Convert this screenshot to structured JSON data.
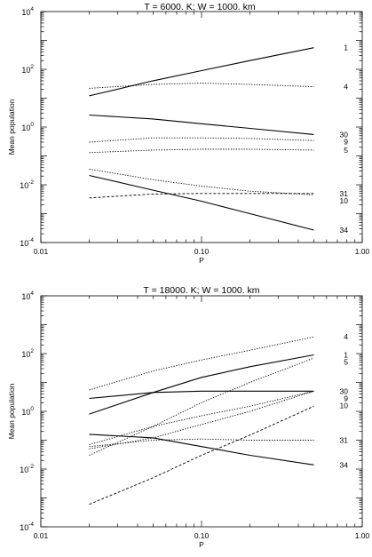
{
  "chart_data": [
    {
      "type": "line",
      "title": "T =  6000. K; W = 1000. km",
      "xlabel": "P",
      "ylabel": "Mean population",
      "xscale": "log",
      "yscale": "log",
      "xlim": [
        0.01,
        1.0
      ],
      "ylim": [
        0.0001,
        10000
      ],
      "x_tick_labels": [
        "0.01",
        "0.10",
        "1.00"
      ],
      "y_tick_labels": [
        {
          "base": "10",
          "exp": "-4"
        },
        {
          "base": "10",
          "exp": "-2"
        },
        {
          "base": "10",
          "exp": "0"
        },
        {
          "base": "10",
          "exp": "2"
        },
        {
          "base": "10",
          "exp": "4"
        }
      ],
      "x": [
        0.02,
        0.05,
        0.1,
        0.2,
        0.5
      ],
      "series": [
        {
          "name": "1",
          "style": "solid",
          "values": [
            12,
            40,
            90,
            200,
            560
          ]
        },
        {
          "name": "4",
          "style": "dotted",
          "values": [
            22,
            30,
            33,
            30,
            25
          ]
        },
        {
          "name": "30",
          "style": "solid",
          "values": [
            2.6,
            1.9,
            1.3,
            0.9,
            0.55
          ]
        },
        {
          "name": "9",
          "style": "dotted",
          "values": [
            0.3,
            0.42,
            0.42,
            0.4,
            0.34
          ]
        },
        {
          "name": "5",
          "style": "dotted",
          "values": [
            0.13,
            0.16,
            0.17,
            0.17,
            0.16
          ]
        },
        {
          "name": "10",
          "style": "dotted",
          "values": [
            0.035,
            0.015,
            0.009,
            0.006,
            0.0045
          ]
        },
        {
          "name": "31",
          "style": "dashed",
          "values": [
            0.0035,
            0.0048,
            0.005,
            0.005,
            0.005
          ]
        },
        {
          "name": "34",
          "style": "solid",
          "values": [
            0.021,
            0.0065,
            0.0027,
            0.001,
            0.00027
          ]
        }
      ]
    },
    {
      "type": "line",
      "title": "T = 18000. K; W = 1000. km",
      "xlabel": "P",
      "ylabel": "Mean population",
      "xscale": "log",
      "yscale": "log",
      "xlim": [
        0.01,
        1.0
      ],
      "ylim": [
        0.0001,
        10000
      ],
      "x_tick_labels": [
        "0.01",
        "0.10",
        "1.00"
      ],
      "y_tick_labels": [
        {
          "base": "10",
          "exp": "-4"
        },
        {
          "base": "10",
          "exp": "-2"
        },
        {
          "base": "10",
          "exp": "0"
        },
        {
          "base": "10",
          "exp": "2"
        },
        {
          "base": "10",
          "exp": "4"
        }
      ],
      "x": [
        0.02,
        0.05,
        0.1,
        0.2,
        0.5
      ],
      "series": [
        {
          "name": "4",
          "style": "dotted",
          "values": [
            5.5,
            25,
            60,
            130,
            380
          ]
        },
        {
          "name": "1",
          "style": "solid",
          "values": [
            0.8,
            4.5,
            15,
            35,
            90
          ]
        },
        {
          "name": "5",
          "style": "dotted",
          "values": [
            0.03,
            0.3,
            2,
            10,
            70
          ]
        },
        {
          "name": "30",
          "style": "solid",
          "values": [
            2.8,
            4.5,
            5,
            5,
            5
          ]
        },
        {
          "name": "9",
          "style": "dotted",
          "values": [
            0.07,
            0.3,
            0.7,
            1.5,
            5
          ]
        },
        {
          "name": "10",
          "style": "dotted",
          "values": [
            0.05,
            0.12,
            0.35,
            1,
            5
          ]
        },
        {
          "name": "31",
          "style": "dotted",
          "values": [
            0.06,
            0.1,
            0.11,
            0.1,
            0.1
          ]
        },
        {
          "name": "34",
          "style": "solid",
          "values": [
            0.16,
            0.12,
            0.06,
            0.03,
            0.014
          ]
        },
        {
          "name": "",
          "style": "dashed",
          "values": [
            0.0006,
            0.005,
            0.03,
            0.15,
            1.5
          ]
        }
      ]
    }
  ]
}
